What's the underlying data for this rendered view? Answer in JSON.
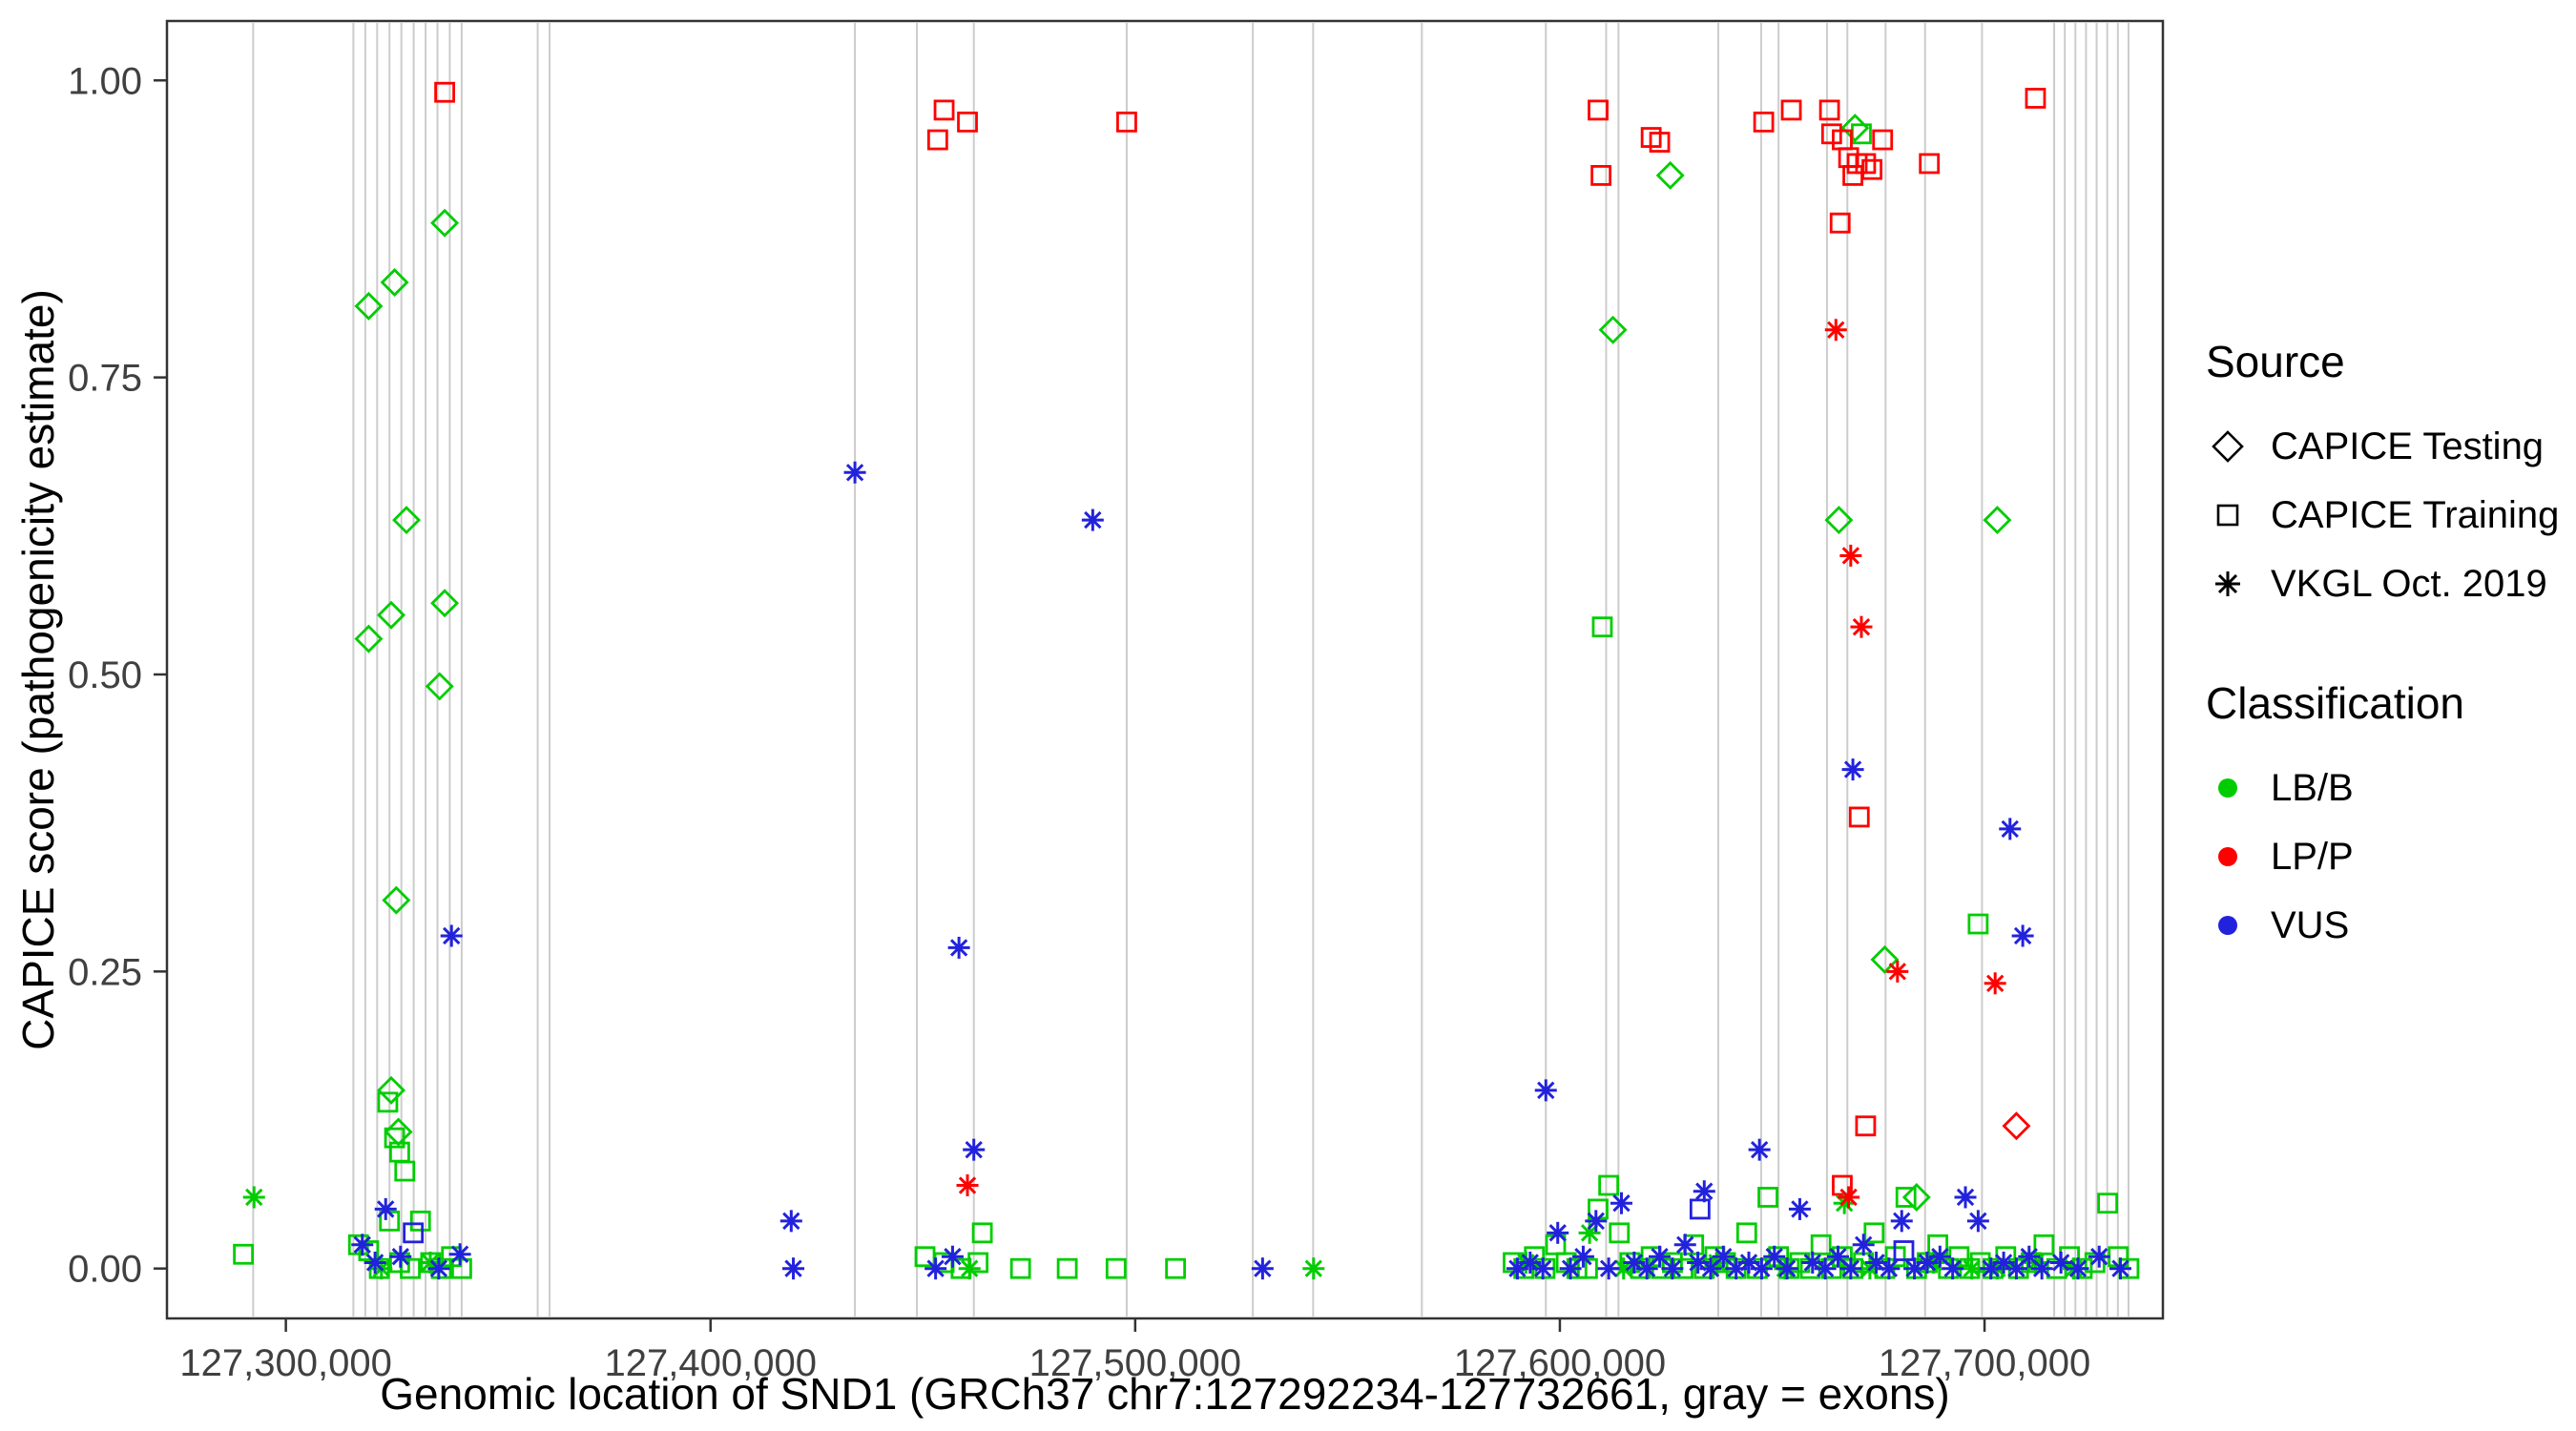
{
  "legend": {
    "source": {
      "title": "Source",
      "items": [
        {
          "label": "CAPICE Testing",
          "shape": "diamond"
        },
        {
          "label": "CAPICE Training",
          "shape": "square"
        },
        {
          "label": "VKGL Oct. 2019",
          "shape": "asterisk"
        }
      ]
    },
    "classification": {
      "title": "Classification",
      "items": [
        {
          "label": "LB/B",
          "color": "#00CD00"
        },
        {
          "label": "LP/P",
          "color": "#FF0000"
        },
        {
          "label": "VUS",
          "color": "#2222DD"
        }
      ]
    }
  },
  "chart_data": {
    "type": "scatter",
    "title": "",
    "xlabel": "Genomic location of SND1 (GRCh37 chr7:127292234-127732661, gray = exons)",
    "ylabel": "CAPICE score (pathogenicity estimate)",
    "xlim": [
      127272000,
      127742000
    ],
    "ylim": [
      -0.042,
      1.05
    ],
    "grid": false,
    "legend_position": "right",
    "x_ticks": [
      {
        "value": 127300000,
        "label": "127,300,000"
      },
      {
        "value": 127400000,
        "label": "127,400,000"
      },
      {
        "value": 127500000,
        "label": "127,500,000"
      },
      {
        "value": 127600000,
        "label": "127,600,000"
      },
      {
        "value": 127700000,
        "label": "127,700,000"
      }
    ],
    "y_ticks": [
      {
        "value": 0.0,
        "label": "0.00"
      },
      {
        "value": 0.25,
        "label": "0.25"
      },
      {
        "value": 0.5,
        "label": "0.50"
      },
      {
        "value": 0.75,
        "label": "0.75"
      },
      {
        "value": 1.0,
        "label": "1.00"
      }
    ],
    "exon_color": "#CCCCCC",
    "exon_positions": [
      127292300,
      127315900,
      127318700,
      127321500,
      127324400,
      127327200,
      127330100,
      127332900,
      127335700,
      127338600,
      127341400,
      127359300,
      127362100,
      127434000,
      127448600,
      127462000,
      127498000,
      127527700,
      127541900,
      127567500,
      127596700,
      127610900,
      127613800,
      127637300,
      127647400,
      127651500,
      127662900,
      127667700,
      127676700,
      127686000,
      127699400,
      127716400,
      127718900,
      127721400,
      127723900,
      127726400,
      127728900,
      127731400,
      127733900
    ],
    "shape_by_source": {
      "CAPICE Testing": "diamond",
      "CAPICE Training": "square",
      "VKGL Oct. 2019": "asterisk"
    },
    "color_by_classification": {
      "LB/B": "#00CD00",
      "LP/P": "#FF0000",
      "VUS": "#2222DD"
    },
    "series": [
      {
        "source": "CAPICE Testing",
        "classification": "LB/B",
        "shape": "diamond",
        "color": "#00CD00",
        "points": [
          [
            127319500,
            0.81
          ],
          [
            127325600,
            0.83
          ],
          [
            127337400,
            0.88
          ],
          [
            127319500,
            0.53
          ],
          [
            127324800,
            0.55
          ],
          [
            127328400,
            0.63
          ],
          [
            127337400,
            0.56
          ],
          [
            127336200,
            0.49
          ],
          [
            127326000,
            0.31
          ],
          [
            127324800,
            0.15
          ],
          [
            127326500,
            0.115
          ],
          [
            127612500,
            0.79
          ],
          [
            127626000,
            0.92
          ],
          [
            127665700,
            0.63
          ],
          [
            127703000,
            0.63
          ],
          [
            127676500,
            0.26
          ],
          [
            127684000,
            0.06
          ],
          [
            127669500,
            0.96
          ]
        ]
      },
      {
        "source": "CAPICE Testing",
        "classification": "LP/P",
        "shape": "diamond",
        "color": "#FF0000",
        "points": [
          [
            127707500,
            0.12
          ]
        ]
      },
      {
        "source": "CAPICE Training",
        "classification": "LB/B",
        "shape": "square",
        "color": "#00CD00",
        "points": [
          [
            127290000,
            0.012
          ],
          [
            127324000,
            0.14
          ],
          [
            127325600,
            0.11
          ],
          [
            127326800,
            0.098
          ],
          [
            127328000,
            0.082
          ],
          [
            127317100,
            0.02
          ],
          [
            127319500,
            0.015
          ],
          [
            127322000,
            0
          ],
          [
            127324400,
            0.04
          ],
          [
            127326800,
            0.005
          ],
          [
            127329300,
            0
          ],
          [
            127331700,
            0.04
          ],
          [
            127334100,
            0.005
          ],
          [
            127336600,
            0
          ],
          [
            127339000,
            0.01
          ],
          [
            127341400,
            0
          ],
          [
            127450500,
            0.01
          ],
          [
            127455000,
            0.005
          ],
          [
            127459000,
            0
          ],
          [
            127463000,
            0.005
          ],
          [
            127464000,
            0.03
          ],
          [
            127473000,
            0
          ],
          [
            127484000,
            0
          ],
          [
            127495500,
            0
          ],
          [
            127509500,
            0
          ],
          [
            127610000,
            0.54
          ],
          [
            127671000,
            0.955
          ],
          [
            127698500,
            0.29
          ],
          [
            127589000,
            0.005
          ],
          [
            127591500,
            0
          ],
          [
            127594000,
            0.01
          ],
          [
            127596500,
            0
          ],
          [
            127599000,
            0.02
          ],
          [
            127601500,
            0.005
          ],
          [
            127604000,
            0
          ],
          [
            127606500,
            0
          ],
          [
            127609000,
            0.05
          ],
          [
            127611500,
            0.07
          ],
          [
            127614000,
            0.03
          ],
          [
            127616500,
            0.005
          ],
          [
            127619000,
            0
          ],
          [
            127621500,
            0.01
          ],
          [
            127624000,
            0
          ],
          [
            127626500,
            0.005
          ],
          [
            127629000,
            0
          ],
          [
            127631500,
            0.02
          ],
          [
            127634000,
            0
          ],
          [
            127636500,
            0.01
          ],
          [
            127639000,
            0.005
          ],
          [
            127641500,
            0
          ],
          [
            127644000,
            0.03
          ],
          [
            127646500,
            0
          ],
          [
            127649000,
            0.06
          ],
          [
            127651500,
            0.01
          ],
          [
            127654000,
            0
          ],
          [
            127656500,
            0.005
          ],
          [
            127659000,
            0
          ],
          [
            127661500,
            0.02
          ],
          [
            127664000,
            0
          ],
          [
            127666500,
            0.01
          ],
          [
            127669000,
            0
          ],
          [
            127671500,
            0.005
          ],
          [
            127674000,
            0.03
          ],
          [
            127676500,
            0
          ],
          [
            127679000,
            0.01
          ],
          [
            127681500,
            0.06
          ],
          [
            127684000,
            0
          ],
          [
            127686500,
            0.005
          ],
          [
            127689000,
            0.02
          ],
          [
            127691500,
            0
          ],
          [
            127694000,
            0.01
          ],
          [
            127696500,
            0
          ],
          [
            127699000,
            0.005
          ],
          [
            127702000,
            0
          ],
          [
            127705000,
            0.01
          ],
          [
            127708000,
            0
          ],
          [
            127711000,
            0.005
          ],
          [
            127714000,
            0.02
          ],
          [
            127717000,
            0
          ],
          [
            127720000,
            0.01
          ],
          [
            127723000,
            0
          ],
          [
            127726000,
            0.005
          ],
          [
            127729000,
            0.055
          ],
          [
            127731500,
            0.01
          ],
          [
            127734000,
            0
          ]
        ]
      },
      {
        "source": "CAPICE Training",
        "classification": "LP/P",
        "shape": "square",
        "color": "#FF0000",
        "points": [
          [
            127337400,
            0.99
          ],
          [
            127453500,
            0.95
          ],
          [
            127455000,
            0.975
          ],
          [
            127460500,
            0.965
          ],
          [
            127498000,
            0.965
          ],
          [
            127609000,
            0.975
          ],
          [
            127609700,
            0.92
          ],
          [
            127621500,
            0.952
          ],
          [
            127623500,
            0.948
          ],
          [
            127648000,
            0.965
          ],
          [
            127654500,
            0.975
          ],
          [
            127663500,
            0.975
          ],
          [
            127664000,
            0.955
          ],
          [
            127666500,
            0.95
          ],
          [
            127668000,
            0.935
          ],
          [
            127670000,
            0.93
          ],
          [
            127672000,
            0.93
          ],
          [
            127673500,
            0.925
          ],
          [
            127669000,
            0.92
          ],
          [
            127666000,
            0.88
          ],
          [
            127676000,
            0.95
          ],
          [
            127687000,
            0.93
          ],
          [
            127712000,
            0.985
          ],
          [
            127670500,
            0.38
          ],
          [
            127672000,
            0.12
          ],
          [
            127666500,
            0.07
          ]
        ]
      },
      {
        "source": "CAPICE Training",
        "classification": "VUS",
        "shape": "square",
        "color": "#2222DD",
        "points": [
          [
            127330000,
            0.03
          ],
          [
            127633000,
            0.05
          ],
          [
            127681000,
            0.015
          ]
        ]
      },
      {
        "source": "VKGL Oct. 2019",
        "classification": "LB/B",
        "shape": "asterisk",
        "color": "#00CD00",
        "points": [
          [
            127292500,
            0.06
          ],
          [
            127322500,
            0
          ],
          [
            127334000,
            0.005
          ],
          [
            127461000,
            0
          ],
          [
            127542000,
            0
          ],
          [
            127592000,
            0.005
          ],
          [
            127607000,
            0.03
          ],
          [
            127615000,
            0
          ],
          [
            127637000,
            0.005
          ],
          [
            127653000,
            0
          ],
          [
            127667000,
            0.055
          ],
          [
            127673000,
            0
          ],
          [
            127688000,
            0.005
          ],
          [
            127697000,
            0
          ],
          [
            127703000,
            0
          ],
          [
            127712000,
            0.005
          ],
          [
            127721000,
            0
          ]
        ]
      },
      {
        "source": "VKGL Oct. 2019",
        "classification": "LP/P",
        "shape": "asterisk",
        "color": "#FF0000",
        "points": [
          [
            127460500,
            0.07
          ],
          [
            127665000,
            0.79
          ],
          [
            127668500,
            0.6
          ],
          [
            127671000,
            0.54
          ],
          [
            127679500,
            0.25
          ],
          [
            127702500,
            0.24
          ],
          [
            127668000,
            0.06
          ]
        ]
      },
      {
        "source": "VKGL Oct. 2019",
        "classification": "VUS",
        "shape": "asterisk",
        "color": "#2222DD",
        "points": [
          [
            127318000,
            0.02
          ],
          [
            127321000,
            0.005
          ],
          [
            127323500,
            0.05
          ],
          [
            127327000,
            0.01
          ],
          [
            127339000,
            0.28
          ],
          [
            127341000,
            0.012
          ],
          [
            127336000,
            0
          ],
          [
            127434000,
            0.67
          ],
          [
            127419000,
            0.04
          ],
          [
            127419500,
            0
          ],
          [
            127458500,
            0.27
          ],
          [
            127462000,
            0.1
          ],
          [
            127457000,
            0.01
          ],
          [
            127453000,
            0
          ],
          [
            127490000,
            0.63
          ],
          [
            127530000,
            0
          ],
          [
            127596700,
            0.15
          ],
          [
            127647000,
            0.1
          ],
          [
            127634000,
            0.065
          ],
          [
            127669000,
            0.42
          ],
          [
            127706000,
            0.37
          ],
          [
            127709000,
            0.28
          ],
          [
            127590000,
            0
          ],
          [
            127593000,
            0.005
          ],
          [
            127596000,
            0
          ],
          [
            127599500,
            0.03
          ],
          [
            127602500,
            0
          ],
          [
            127605500,
            0.01
          ],
          [
            127608500,
            0.04
          ],
          [
            127611500,
            0
          ],
          [
            127614500,
            0.055
          ],
          [
            127617500,
            0.005
          ],
          [
            127620500,
            0
          ],
          [
            127623500,
            0.01
          ],
          [
            127626500,
            0
          ],
          [
            127629500,
            0.02
          ],
          [
            127632500,
            0.005
          ],
          [
            127635500,
            0
          ],
          [
            127638500,
            0.01
          ],
          [
            127641500,
            0
          ],
          [
            127644500,
            0.005
          ],
          [
            127647500,
            0
          ],
          [
            127650500,
            0.01
          ],
          [
            127653500,
            0
          ],
          [
            127656500,
            0.05
          ],
          [
            127659500,
            0.005
          ],
          [
            127662500,
            0
          ],
          [
            127665500,
            0.01
          ],
          [
            127668500,
            0
          ],
          [
            127671500,
            0.02
          ],
          [
            127674500,
            0.005
          ],
          [
            127677500,
            0
          ],
          [
            127680500,
            0.04
          ],
          [
            127683500,
            0
          ],
          [
            127686500,
            0.005
          ],
          [
            127689500,
            0.01
          ],
          [
            127692500,
            0
          ],
          [
            127695500,
            0.06
          ],
          [
            127698500,
            0.04
          ],
          [
            127701500,
            0
          ],
          [
            127704500,
            0.005
          ],
          [
            127707500,
            0
          ],
          [
            127710500,
            0.01
          ],
          [
            127713500,
            0
          ],
          [
            127718000,
            0.005
          ],
          [
            127722000,
            0
          ],
          [
            127727000,
            0.01
          ],
          [
            127732000,
            0
          ]
        ]
      }
    ]
  }
}
